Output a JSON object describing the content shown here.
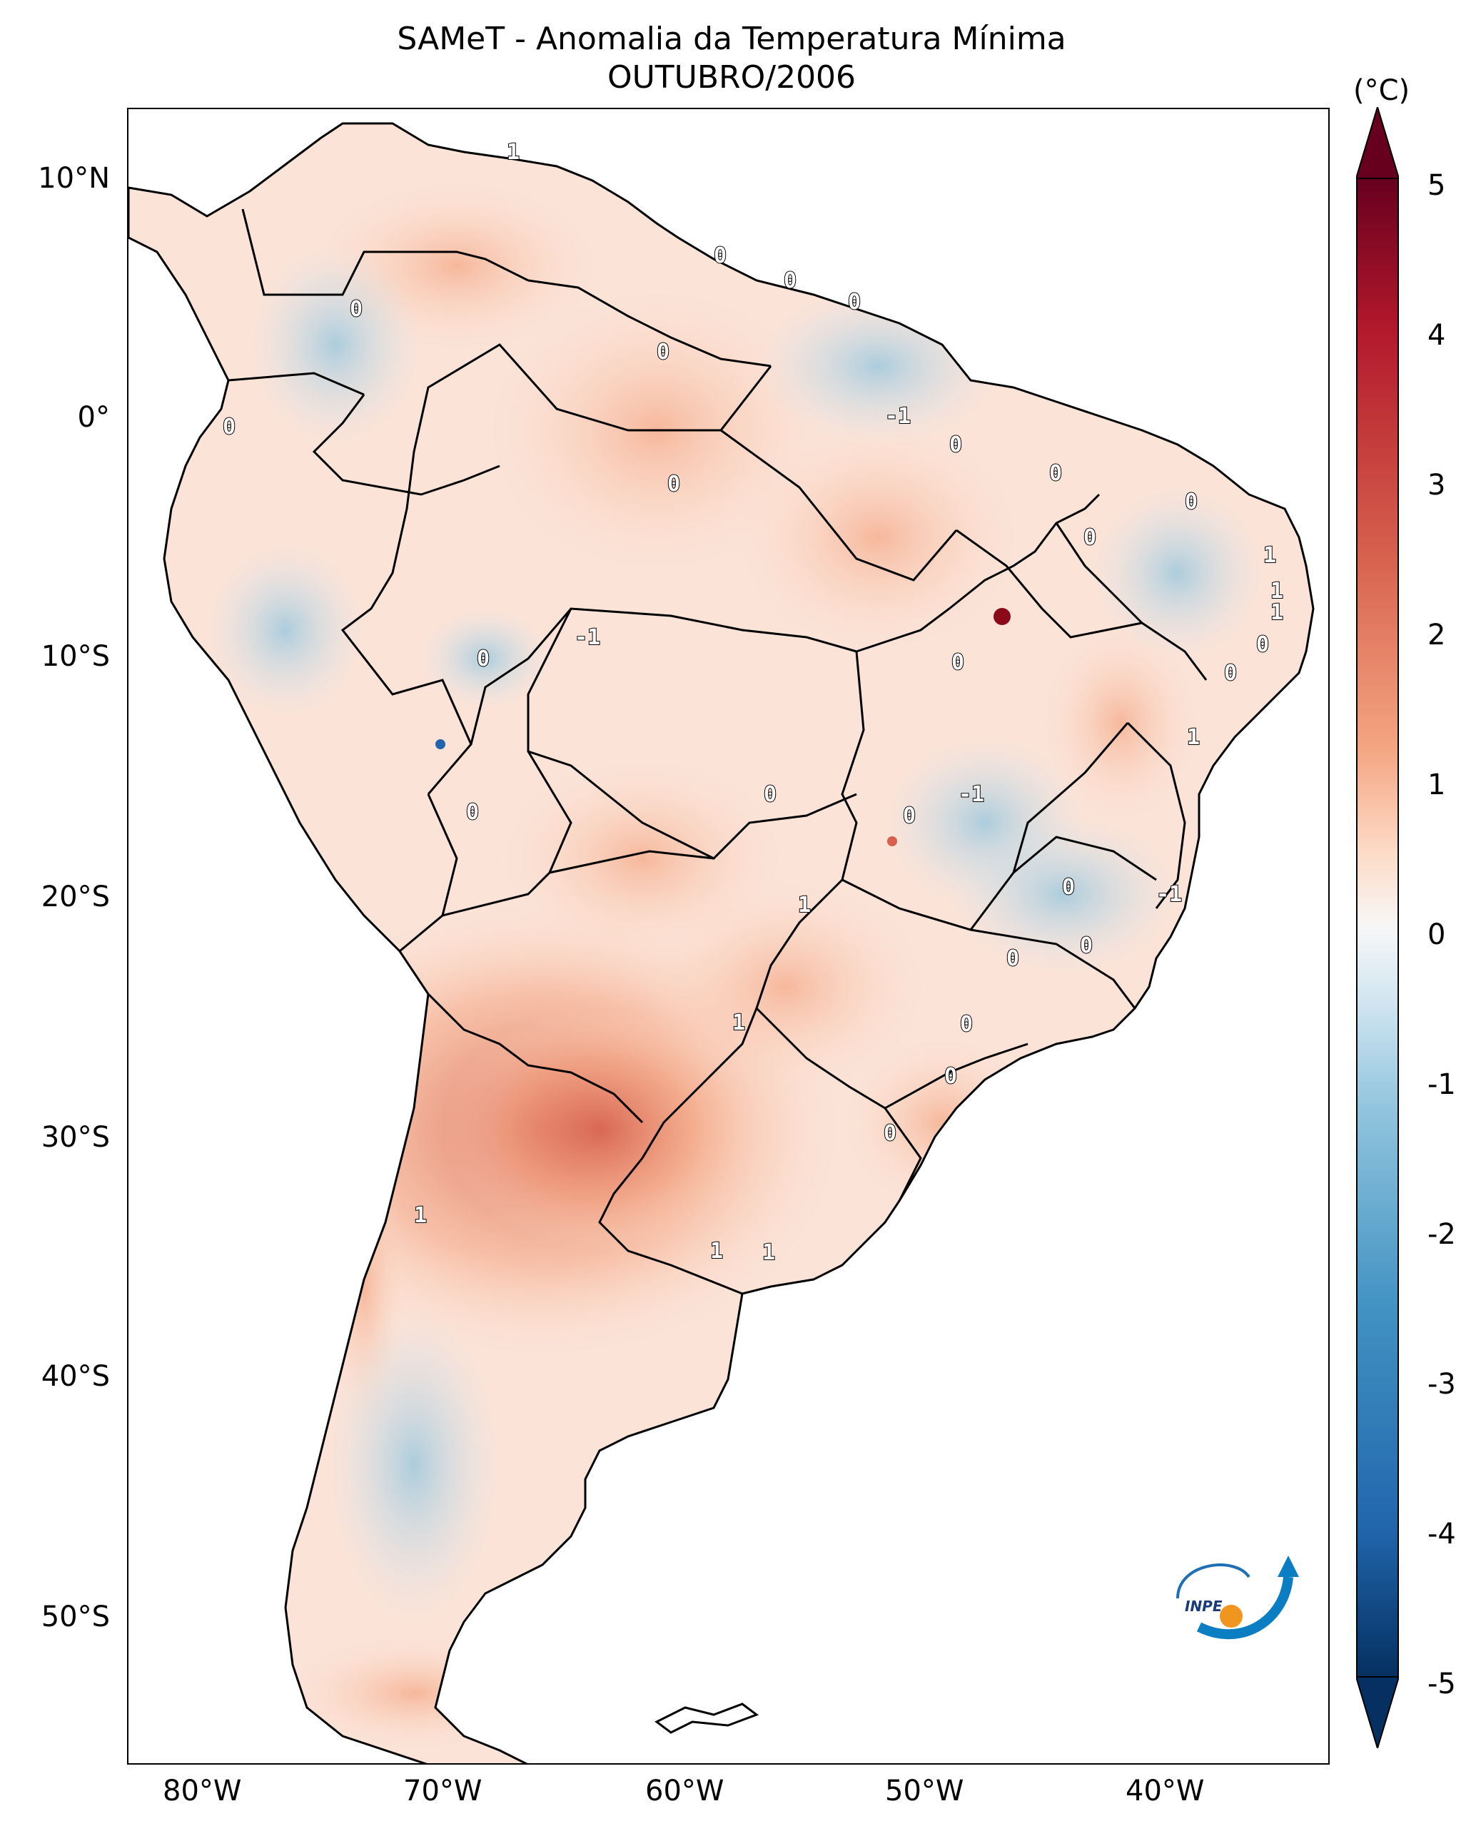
{
  "title": "SAMeT - Anomalia da Temperatura Mínima",
  "subtitle": "OUTUBRO/2006",
  "colorbar": {
    "unit": "(°C)",
    "ticks": [
      "5",
      "4",
      "3",
      "2",
      "1",
      "0",
      "-1",
      "-2",
      "-3",
      "-4",
      "-5"
    ],
    "range": [
      -5,
      5
    ],
    "colormap": "RdBu_r",
    "extend": "both",
    "colors": {
      "max": "#67001f",
      "high": "#d6604d",
      "mid": "#f7f7f7",
      "low": "#4393c3",
      "min": "#053061"
    }
  },
  "axes": {
    "lat_labels": [
      "10°N",
      "0°",
      "10°S",
      "20°S",
      "30°S",
      "40°S",
      "50°S"
    ],
    "lon_labels": [
      "80°W",
      "70°W",
      "60°W",
      "50°W",
      "40°W"
    ],
    "lon_range": [
      -83,
      -33
    ],
    "lat_range": [
      -56,
      13
    ]
  },
  "map": {
    "land_color": "#fbe2d6",
    "border_color": "#000000",
    "contour_labels": [
      "1",
      "0",
      "0",
      "0",
      "0",
      "0",
      "0",
      "-1",
      "0",
      "0",
      "0",
      "0",
      "0",
      "1",
      "1",
      "1",
      "0",
      "0",
      "0",
      "-1",
      "0",
      "1",
      "0",
      "-1",
      "0",
      "0",
      "-1",
      "1",
      "0",
      "0",
      "0",
      "0",
      "1",
      "0",
      "0",
      "1",
      "1",
      "1"
    ]
  },
  "logo": {
    "text": "INPE"
  }
}
